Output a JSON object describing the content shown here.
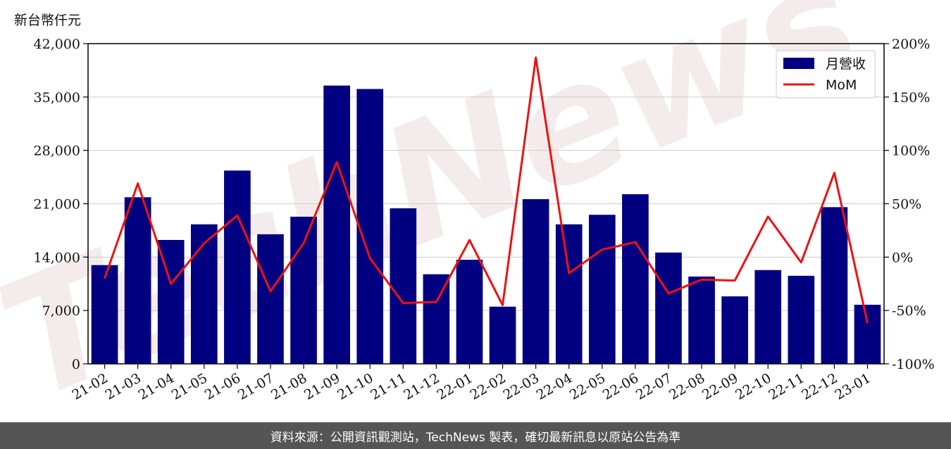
{
  "y_axis_unit": "新台幣仟元",
  "footer_text": "資料來源：公開資訊觀測站，TechNews 製表，確切最新訊息以原站公告為準",
  "watermark": "TechNews",
  "colors": {
    "bar": "#000080",
    "line": "#ee1111",
    "grid": "#cccccc",
    "footer_bg": "#555555"
  },
  "chart_data": {
    "type": "bar",
    "categories": [
      "21-02",
      "21-03",
      "21-04",
      "21-05",
      "21-06",
      "21-07",
      "21-08",
      "21-09",
      "21-10",
      "21-11",
      "21-12",
      "22-01",
      "22-02",
      "22-03",
      "22-04",
      "22-05",
      "22-06",
      "22-07",
      "22-08",
      "22-09",
      "22-10",
      "22-11",
      "22-12",
      "23-01"
    ],
    "series": [
      {
        "name": "月營收",
        "type": "bar",
        "axis": "left",
        "values": [
          12950,
          21850,
          16250,
          18300,
          25350,
          17000,
          19300,
          36500,
          36050,
          20400,
          11750,
          13650,
          7500,
          21600,
          18300,
          19550,
          22250,
          14600,
          11450,
          8850,
          12300,
          11550,
          20550,
          7750
        ]
      },
      {
        "name": "MoM",
        "type": "line",
        "axis": "right",
        "values": [
          -20,
          69,
          -25,
          13,
          39,
          -32,
          13,
          89,
          -1,
          -43,
          -42,
          16,
          -45,
          187,
          -15,
          7,
          14,
          -34,
          -21,
          -22,
          38,
          -5,
          79,
          -62
        ]
      }
    ],
    "y_left": {
      "ticks": [
        "0",
        "7,000",
        "14,000",
        "21,000",
        "28,000",
        "35,000",
        "42,000"
      ],
      "range": [
        0,
        42000
      ]
    },
    "y_right": {
      "ticks": [
        "-100%",
        "-50%",
        "0%",
        "50%",
        "100%",
        "150%",
        "200%"
      ],
      "range": [
        -100,
        200
      ]
    },
    "grid": "horizontal",
    "legend_position": "top-right"
  }
}
